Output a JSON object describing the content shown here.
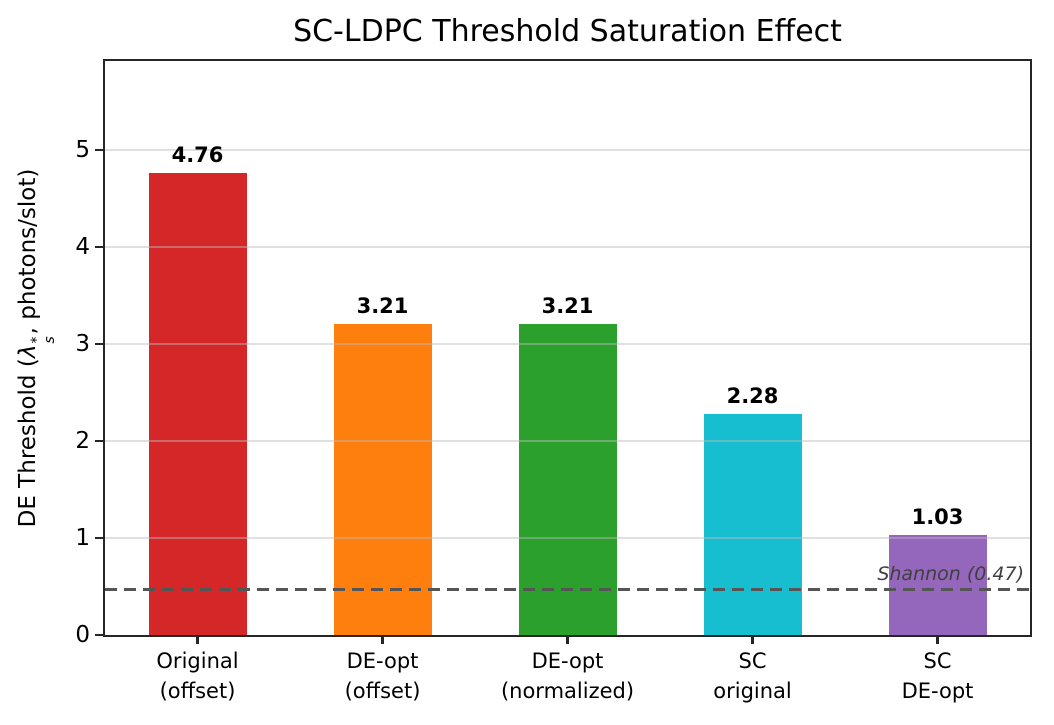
{
  "chart_data": {
    "type": "bar",
    "title": "SC-LDPC Threshold Saturation Effect",
    "categories": [
      "Original (offset)",
      "DE-opt (offset)",
      "DE-opt (normalized)",
      "SC original",
      "SC DE-opt"
    ],
    "category_lines": [
      [
        "Original",
        "(offset)"
      ],
      [
        "DE-opt",
        "(offset)"
      ],
      [
        "DE-opt",
        "(normalized)"
      ],
      [
        "SC",
        "original"
      ],
      [
        "SC",
        "DE-opt"
      ]
    ],
    "values": [
      4.76,
      3.21,
      3.21,
      2.28,
      1.03
    ],
    "value_labels": [
      "4.76",
      "3.21",
      "3.21",
      "2.28",
      "1.03"
    ],
    "bar_colors": [
      "#d62728",
      "#ff7f0e",
      "#2ca02c",
      "#17becf",
      "#9467bd"
    ],
    "xlabel": "",
    "ylabel": "DE Threshold (λs*, photons/slot)",
    "ylabel_parts": {
      "prefix": "DE Threshold (",
      "symbol": "λ",
      "sup": "*",
      "sub": "s",
      "suffix": ", photons/slot)"
    },
    "yticks": [
      "0",
      "1",
      "2",
      "3",
      "4",
      "5"
    ],
    "ylim": [
      0,
      5.92
    ],
    "grid": "horizontal",
    "legend": "none",
    "reference_line": {
      "value": 0.47,
      "label": "Shannon (0.47)",
      "style": "dashed",
      "color": "#555555"
    },
    "style_colors": {
      "spine": "#262626",
      "grid": "#bbbbbb",
      "annotation": "#3f3f3f",
      "background": "#ffffff"
    }
  }
}
